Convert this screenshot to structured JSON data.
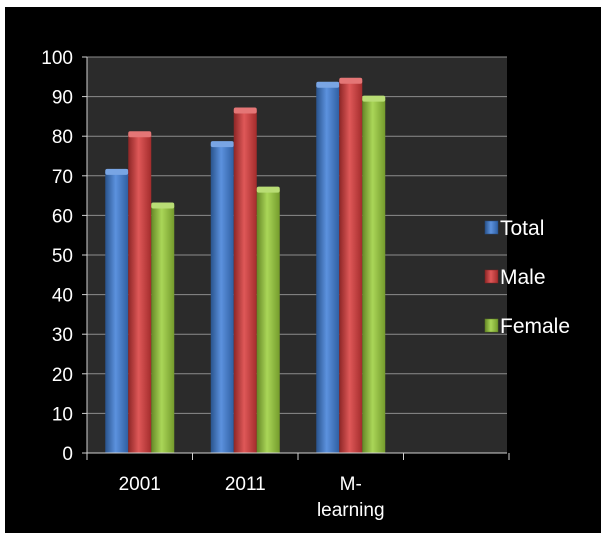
{
  "colors": {
    "background": "#000000",
    "plot_area": "#2b2b2b",
    "gridline": "#8c8c8c",
    "axis": "#d0d0d0",
    "text": "#ffffff"
  },
  "chart_data": {
    "type": "bar",
    "title": "",
    "xlabel": "",
    "ylabel": "",
    "categories": [
      [
        "2001"
      ],
      [
        "2011"
      ],
      [
        "M-",
        "learning"
      ]
    ],
    "ylim": [
      0,
      100
    ],
    "yticks": [
      0,
      10,
      20,
      30,
      40,
      50,
      60,
      70,
      80,
      90,
      100
    ],
    "grid": true,
    "legend_position": "right",
    "series": [
      {
        "name": "Total",
        "color": "#3f7fd8",
        "values": [
          71,
          78,
          93
        ]
      },
      {
        "name": "Male",
        "color": "#d93b3b",
        "values": [
          80.5,
          86.5,
          94
        ]
      },
      {
        "name": "Female",
        "color": "#9bcf3a",
        "values": [
          62.5,
          66.5,
          89.5
        ]
      }
    ]
  }
}
